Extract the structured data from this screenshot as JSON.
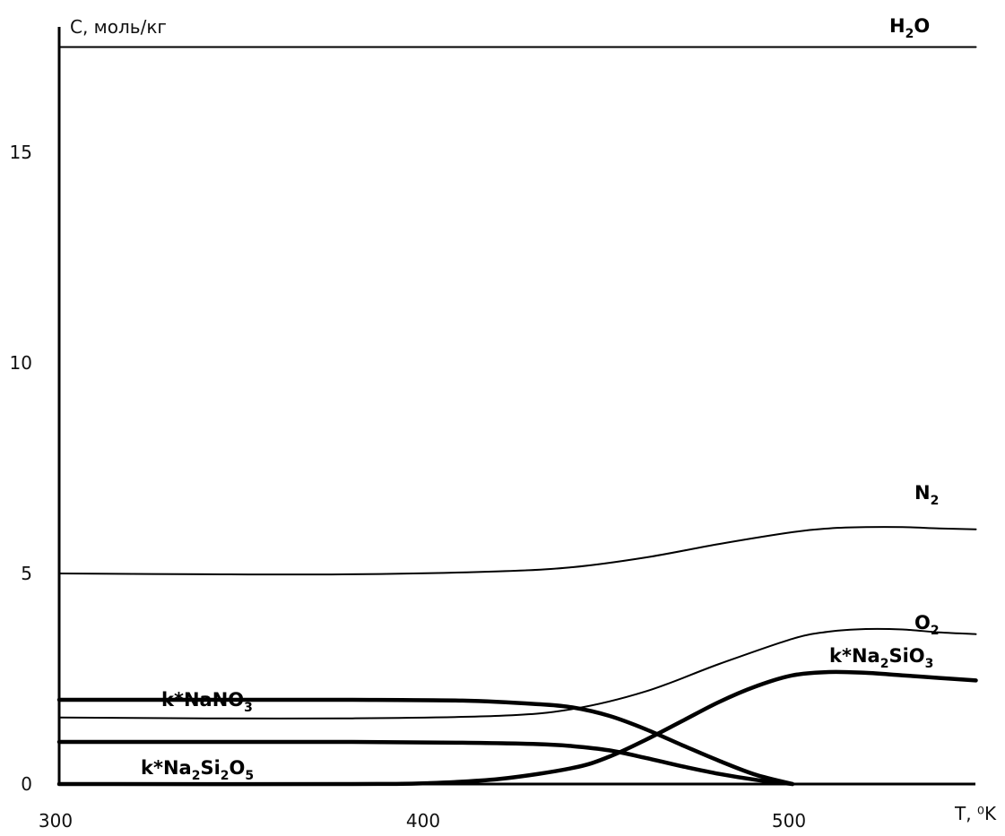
{
  "chart_data": {
    "type": "line",
    "xlabel": "T, ⁰K",
    "ylabel": "C, моль/кг",
    "xlim": [
      300,
      550
    ],
    "ylim": [
      0,
      18
    ],
    "x_ticks": [
      "300",
      "400",
      "500"
    ],
    "y_ticks": [
      "0",
      "5",
      "10",
      "15"
    ],
    "grid": false,
    "series": [
      {
        "name": "H2O",
        "label_parts": [
          [
            "H",
            ""
          ],
          [
            "2",
            "sub"
          ],
          [
            "O",
            ""
          ]
        ],
        "weight": "thin",
        "x": [
          300,
          550
        ],
        "y": [
          17.5,
          17.5
        ]
      },
      {
        "name": "N2",
        "label_parts": [
          [
            "N",
            ""
          ],
          [
            "2",
            "sub"
          ]
        ],
        "weight": "thin",
        "x": [
          300,
          340,
          380,
          420,
          440,
          460,
          480,
          500,
          510,
          520,
          530,
          540,
          550
        ],
        "y": [
          5.0,
          4.98,
          4.98,
          5.05,
          5.15,
          5.38,
          5.7,
          5.98,
          6.07,
          6.1,
          6.1,
          6.07,
          6.05
        ]
      },
      {
        "name": "O2",
        "label_parts": [
          [
            "O",
            ""
          ],
          [
            "2",
            "sub"
          ]
        ],
        "weight": "thin",
        "x": [
          300,
          340,
          380,
          420,
          440,
          460,
          480,
          500,
          510,
          520,
          530,
          540,
          550
        ],
        "y": [
          1.58,
          1.56,
          1.56,
          1.62,
          1.78,
          2.2,
          2.85,
          3.45,
          3.62,
          3.68,
          3.67,
          3.6,
          3.56
        ]
      },
      {
        "name": "k*NaNO3",
        "label_parts": [
          [
            "k*NaNO",
            ""
          ],
          [
            "3",
            "sub"
          ]
        ],
        "weight": "thick",
        "x": [
          300,
          340,
          380,
          410,
          430,
          440,
          450,
          460,
          470,
          480,
          490,
          500
        ],
        "y": [
          2.0,
          2.0,
          2.0,
          1.98,
          1.9,
          1.82,
          1.62,
          1.3,
          0.92,
          0.55,
          0.22,
          0.0
        ]
      },
      {
        "name": "k*Na2Si2O5",
        "label_parts": [
          [
            "k*Na",
            ""
          ],
          [
            "2",
            "sub"
          ],
          [
            "Si",
            ""
          ],
          [
            "2",
            "sub"
          ],
          [
            "O",
            ""
          ],
          [
            "5",
            "sub"
          ]
        ],
        "weight": "thick",
        "x": [
          300,
          340,
          380,
          410,
          430,
          440,
          450,
          460,
          470,
          480,
          490,
          500
        ],
        "y": [
          1.0,
          1.0,
          1.0,
          0.98,
          0.95,
          0.9,
          0.8,
          0.62,
          0.42,
          0.24,
          0.1,
          0.0
        ]
      },
      {
        "name": "k*Na2SiO3",
        "label_parts": [
          [
            "k*Na",
            ""
          ],
          [
            "2",
            "sub"
          ],
          [
            "SiO",
            ""
          ],
          [
            "3",
            "sub"
          ]
        ],
        "weight": "thick",
        "x": [
          300,
          380,
          400,
          420,
          440,
          450,
          460,
          470,
          480,
          490,
          500,
          510,
          520,
          530,
          540,
          550
        ],
        "y": [
          0.0,
          0.0,
          0.02,
          0.12,
          0.38,
          0.65,
          1.05,
          1.5,
          1.95,
          2.32,
          2.58,
          2.66,
          2.64,
          2.58,
          2.52,
          2.46
        ]
      }
    ]
  }
}
